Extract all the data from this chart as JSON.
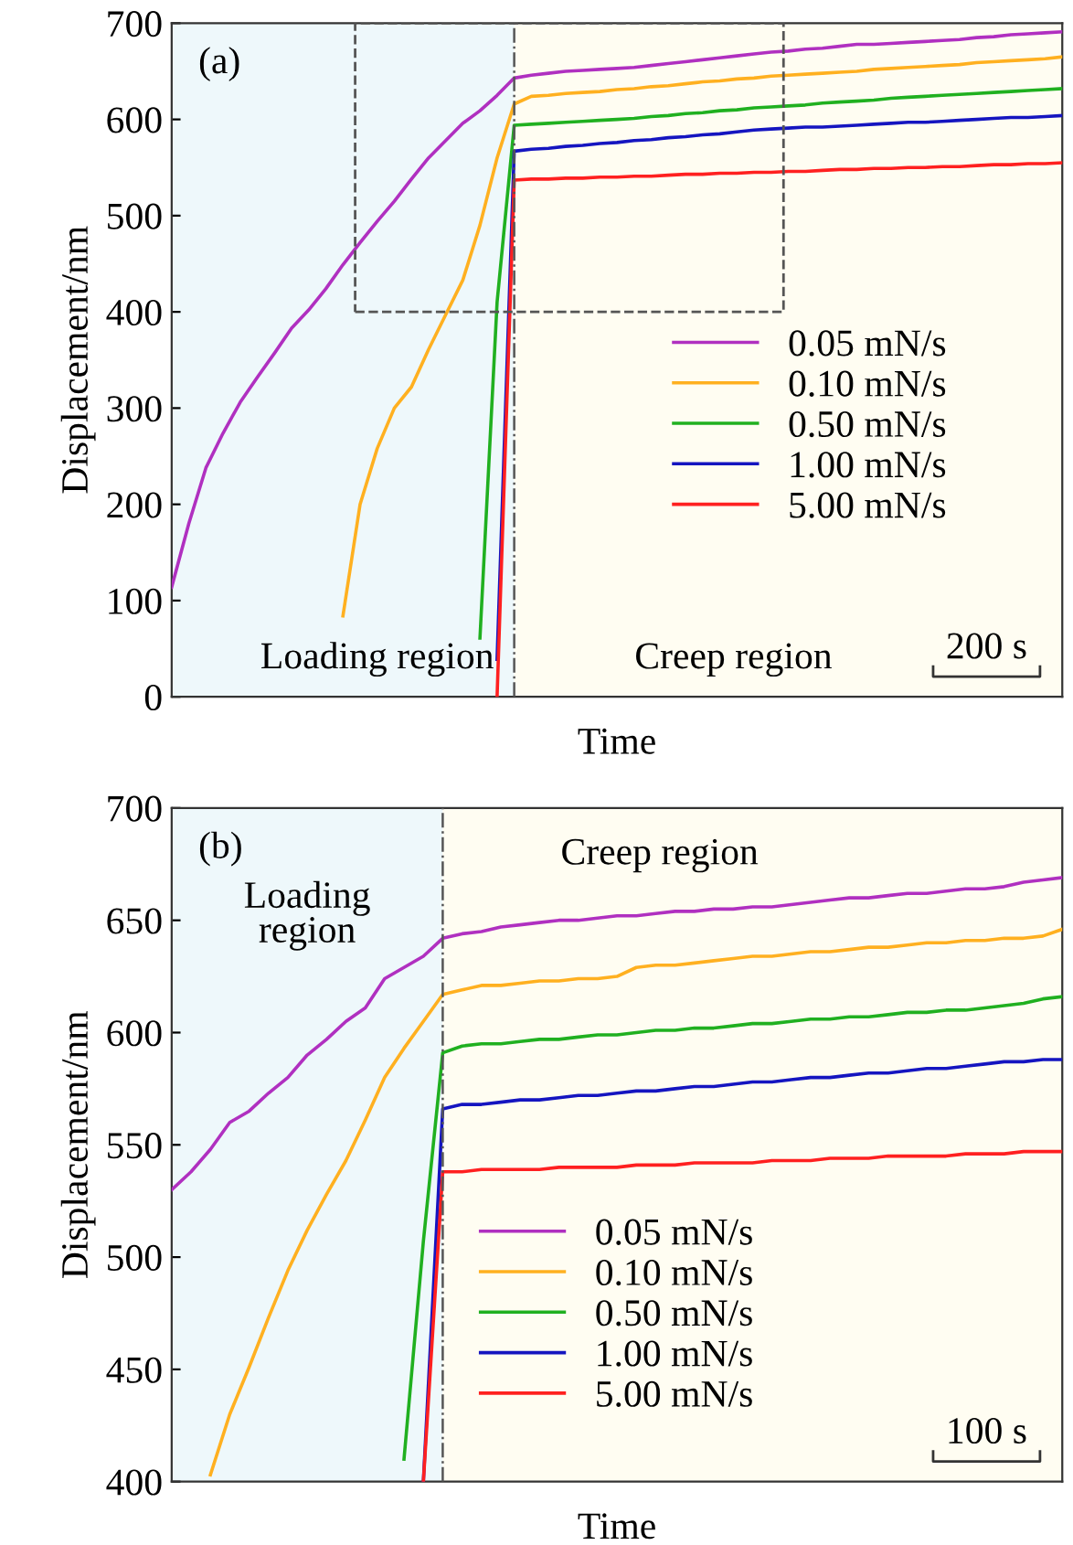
{
  "chart_data": [
    {
      "type": "line",
      "xlabel": "Time",
      "ylabel": "Displacement/nm",
      "ylim": [
        0,
        700
      ],
      "yticks": [
        0,
        100,
        200,
        300,
        400,
        500,
        600,
        700
      ],
      "tick_labels": "y",
      "legend": "right",
      "line_style": "solid",
      "annotations": [
        "(a)",
        "200 s",
        "Loading region",
        "Creep region"
      ],
      "categories": [
        null,
        null,
        null,
        null,
        null,
        null,
        null,
        null,
        null,
        null,
        null,
        null,
        null,
        null,
        null,
        null,
        null,
        null,
        null,
        null,
        null,
        null,
        null,
        null,
        null,
        null,
        null,
        null,
        null,
        null,
        null,
        null,
        null,
        null,
        null,
        null,
        null,
        null,
        null,
        null,
        null,
        null,
        null,
        null,
        null,
        null,
        null,
        null,
        null,
        null,
        null,
        null,
        null
      ],
      "series": [
        {
          "name": "0.05 mN/s",
          "color": "#b030c0",
          "values": [
            114,
            180,
            238,
            274,
            306,
            332,
            357,
            383,
            402,
            424,
            449,
            472,
            494,
            515,
            538,
            560,
            578,
            596,
            609,
            625,
            643,
            646,
            648,
            650,
            651,
            652,
            653,
            654,
            656,
            658,
            660,
            662,
            664,
            666,
            668,
            670,
            671,
            673,
            674,
            676,
            678,
            678,
            679,
            680,
            681,
            682,
            683,
            685,
            686,
            688,
            689,
            690,
            691
          ]
        },
        {
          "name": "0.10 mN/s",
          "color": "#ffb020",
          "values": [
            null,
            null,
            null,
            null,
            null,
            null,
            null,
            null,
            null,
            null,
            84,
            200,
            258,
            300,
            322,
            361,
            397,
            433,
            490,
            560,
            616,
            624,
            625,
            627,
            628,
            629,
            631,
            632,
            634,
            635,
            637,
            639,
            640,
            642,
            643,
            645,
            646,
            647,
            648,
            649,
            650,
            652,
            653,
            654,
            655,
            656,
            657,
            659,
            660,
            661,
            662,
            663,
            665
          ]
        },
        {
          "name": "0.50 mN/s",
          "color": "#20b020",
          "values": [
            null,
            null,
            null,
            null,
            null,
            null,
            null,
            null,
            null,
            null,
            null,
            null,
            null,
            null,
            null,
            null,
            null,
            null,
            61,
            410,
            594,
            595,
            596,
            597,
            598,
            599,
            600,
            601,
            603,
            604,
            606,
            607,
            609,
            610,
            612,
            613,
            614,
            615,
            617,
            618,
            619,
            620,
            622,
            623,
            624,
            625,
            626,
            627,
            628,
            629,
            630,
            631,
            632
          ]
        },
        {
          "name": "1.00 mN/s",
          "color": "#1515c0",
          "values": [
            null,
            null,
            null,
            null,
            null,
            null,
            null,
            null,
            null,
            null,
            null,
            null,
            null,
            null,
            null,
            null,
            null,
            null,
            null,
            39,
            567,
            569,
            570,
            572,
            573,
            575,
            576,
            578,
            579,
            581,
            582,
            584,
            585,
            587,
            589,
            590,
            591,
            592,
            592,
            593,
            594,
            595,
            596,
            597,
            597,
            598,
            599,
            600,
            601,
            602,
            602,
            603,
            604
          ]
        },
        {
          "name": "5.00 mN/s",
          "color": "#ff2020",
          "values": [
            null,
            null,
            null,
            null,
            null,
            null,
            null,
            null,
            null,
            null,
            null,
            null,
            null,
            null,
            null,
            null,
            null,
            null,
            null,
            0,
            537,
            538,
            538,
            539,
            539,
            540,
            540,
            541,
            541,
            542,
            543,
            543,
            544,
            544,
            545,
            545,
            546,
            546,
            547,
            548,
            548,
            549,
            549,
            550,
            550,
            551,
            551,
            552,
            553,
            553,
            554,
            554,
            555
          ]
        }
      ]
    },
    {
      "type": "line",
      "xlabel": "Time",
      "ylabel": "Displacement/nm",
      "ylim": [
        400,
        700
      ],
      "yticks": [
        400,
        450,
        500,
        550,
        600,
        650,
        700
      ],
      "tick_labels": "y",
      "legend": "bottom",
      "line_style": "solid",
      "annotations": [
        "(b)",
        "100 s",
        "Loading\nregion",
        "Creep region"
      ],
      "categories": [
        null,
        null,
        null,
        null,
        null,
        null,
        null,
        null,
        null,
        null,
        null,
        null,
        null,
        null,
        null,
        null,
        null,
        null,
        null,
        null,
        null,
        null,
        null,
        null,
        null,
        null,
        null,
        null,
        null,
        null,
        null,
        null,
        null,
        null,
        null,
        null,
        null,
        null,
        null,
        null,
        null,
        null,
        null,
        null,
        null,
        null,
        null
      ],
      "series": [
        {
          "name": "0.05 mN/s",
          "color": "#b030c0",
          "values": [
            530,
            538,
            548,
            560,
            565,
            573,
            580,
            590,
            597,
            605,
            611,
            624,
            629,
            634,
            642,
            644,
            645,
            647,
            648,
            649,
            650,
            650,
            651,
            652,
            652,
            653,
            654,
            654,
            655,
            655,
            656,
            656,
            657,
            658,
            659,
            660,
            660,
            661,
            662,
            662,
            663,
            664,
            664,
            665,
            667,
            668,
            669
          ]
        },
        {
          "name": "0.10 mN/s",
          "color": "#ffb020",
          "values": [
            null,
            null,
            403,
            430,
            451,
            473,
            494,
            512,
            528,
            543,
            561,
            580,
            593,
            605,
            617,
            619,
            621,
            621,
            622,
            623,
            623,
            624,
            624,
            625,
            629,
            630,
            630,
            631,
            632,
            633,
            634,
            634,
            635,
            636,
            636,
            637,
            638,
            638,
            639,
            640,
            640,
            641,
            641,
            642,
            642,
            643,
            646
          ]
        },
        {
          "name": "0.50 mN/s",
          "color": "#20b020",
          "values": [
            null,
            null,
            null,
            null,
            null,
            null,
            null,
            null,
            null,
            null,
            null,
            null,
            410,
            507,
            591,
            594,
            595,
            595,
            596,
            597,
            597,
            598,
            599,
            599,
            600,
            601,
            601,
            602,
            602,
            603,
            604,
            604,
            605,
            606,
            606,
            607,
            607,
            608,
            609,
            609,
            610,
            610,
            611,
            612,
            613,
            615,
            616
          ]
        },
        {
          "name": "1.00 mN/s",
          "color": "#1515c0",
          "values": [
            null,
            null,
            null,
            null,
            null,
            null,
            null,
            null,
            null,
            null,
            null,
            null,
            null,
            400,
            566,
            568,
            568,
            569,
            570,
            570,
            571,
            572,
            572,
            573,
            574,
            574,
            575,
            576,
            576,
            577,
            578,
            578,
            579,
            580,
            580,
            581,
            582,
            582,
            583,
            584,
            584,
            585,
            586,
            587,
            587,
            588,
            588
          ]
        },
        {
          "name": "5.00 mN/s",
          "color": "#ff2020",
          "values": [
            null,
            null,
            null,
            null,
            null,
            null,
            null,
            null,
            null,
            null,
            null,
            null,
            null,
            400,
            538,
            538,
            539,
            539,
            539,
            539,
            540,
            540,
            540,
            540,
            541,
            541,
            541,
            542,
            542,
            542,
            542,
            543,
            543,
            543,
            544,
            544,
            544,
            545,
            545,
            545,
            545,
            546,
            546,
            546,
            547,
            547,
            547
          ]
        }
      ]
    }
  ]
}
